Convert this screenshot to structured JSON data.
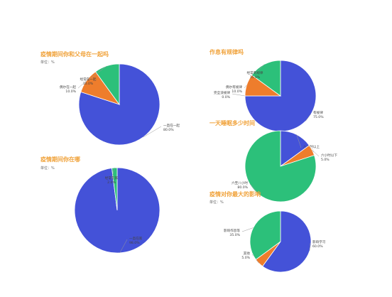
{
  "colors": {
    "title": "#f0a23a",
    "blue": "#4452d8",
    "orange": "#ee7d2c",
    "green": "#2cc07a"
  },
  "chart_data": [
    {
      "type": "pie",
      "title": "疫情期间你和父母在一起吗",
      "unit": "单位：%",
      "slices": [
        {
          "label": "一直在一起",
          "value": 80.0,
          "color": "#4452d8"
        },
        {
          "label": "偶尔在一起",
          "value": 10.0,
          "color": "#ee7d2c"
        },
        {
          "label": "经常在一起",
          "value": 10.0,
          "color": "#2cc07a"
        }
      ]
    },
    {
      "type": "pie",
      "title": "作息有规律吗",
      "unit": "",
      "slices": [
        {
          "label": "有规律",
          "value": 75.0,
          "color": "#4452d8"
        },
        {
          "label": "完全没规律",
          "value": 0.0,
          "color": "#ee7d2c"
        },
        {
          "label": "偶尔有规律",
          "value": 10.0,
          "color": "#ee7d2c"
        },
        {
          "label": "经常有规律",
          "value": 15.0,
          "color": "#2cc07a"
        }
      ]
    },
    {
      "type": "pie",
      "title": "一天睡眠多少时间",
      "unit": "",
      "slices": [
        {
          "label": "八小时以上",
          "value": 15.0,
          "color": "#4452d8"
        },
        {
          "label": "六小时以下",
          "value": 5.0,
          "color": "#ee7d2c"
        },
        {
          "label": "六至八小时",
          "value": 80.0,
          "color": "#2cc07a"
        }
      ]
    },
    {
      "type": "pie",
      "title": "疫情期间你在哪",
      "unit": "单位：%",
      "slices": [
        {
          "label": "一直在家",
          "value": 98.0,
          "color": "#4452d8"
        },
        {
          "label": "经常在家",
          "value": 2.0,
          "color": "#2cc07a"
        }
      ]
    },
    {
      "type": "pie",
      "title": "疫情对你最大的影响",
      "unit": "单位：%",
      "slices": [
        {
          "label": "影响学习",
          "value": 60.0,
          "color": "#4452d8"
        },
        {
          "label": "其他",
          "value": 5.0,
          "color": "#ee7d2c"
        },
        {
          "label": "影响作息等",
          "value": 35.0,
          "color": "#2cc07a"
        }
      ]
    }
  ]
}
